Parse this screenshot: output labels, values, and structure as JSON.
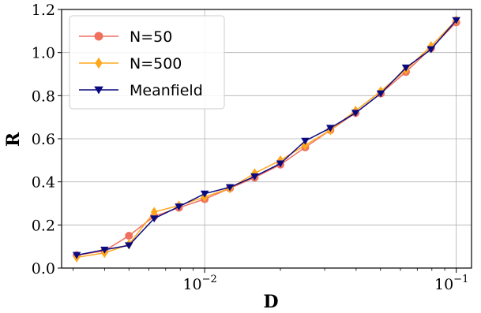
{
  "chart_data": {
    "type": "line",
    "xlabel": "D",
    "ylabel": "R",
    "xscale": "log",
    "xlim": [
      0.0027,
      0.115
    ],
    "ylim": [
      0.0,
      1.2
    ],
    "grid": true,
    "legend_position": "top-left",
    "x_ticks": [
      {
        "value": 0.01,
        "base": "10",
        "exp": "−2"
      },
      {
        "value": 0.1,
        "base": "10",
        "exp": "−1"
      }
    ],
    "y_ticks": [
      {
        "value": 0.0,
        "label": "0.0"
      },
      {
        "value": 0.2,
        "label": "0.2"
      },
      {
        "value": 0.4,
        "label": "0.4"
      },
      {
        "value": 0.6,
        "label": "0.6"
      },
      {
        "value": 0.8,
        "label": "0.8"
      },
      {
        "value": 1.0,
        "label": "1.0"
      },
      {
        "value": 1.2,
        "label": "1.2"
      }
    ],
    "x": [
      0.0031,
      0.004,
      0.005,
      0.0063,
      0.0079,
      0.01,
      0.0126,
      0.0158,
      0.02,
      0.0251,
      0.0316,
      0.0398,
      0.0501,
      0.0631,
      0.0794,
      0.1
    ],
    "series": [
      {
        "name": "N=50",
        "color": "#f07060",
        "marker": "circle",
        "values": [
          0.06,
          0.08,
          0.15,
          0.24,
          0.28,
          0.32,
          0.37,
          0.42,
          0.48,
          0.56,
          0.64,
          0.72,
          0.81,
          0.91,
          1.02,
          1.14
        ]
      },
      {
        "name": "N=500",
        "color": "#ffa81e",
        "marker": "diamond",
        "values": [
          0.05,
          0.07,
          0.11,
          0.26,
          0.29,
          0.33,
          0.37,
          0.44,
          0.5,
          0.57,
          0.64,
          0.73,
          0.82,
          0.92,
          1.03,
          1.15
        ]
      },
      {
        "name": "Meanfield",
        "color": "#0a0a80",
        "marker": "triangle-down",
        "values": [
          0.06,
          0.085,
          0.105,
          0.23,
          0.285,
          0.345,
          0.375,
          0.425,
          0.485,
          0.59,
          0.65,
          0.72,
          0.81,
          0.93,
          1.015,
          1.15
        ]
      }
    ]
  }
}
